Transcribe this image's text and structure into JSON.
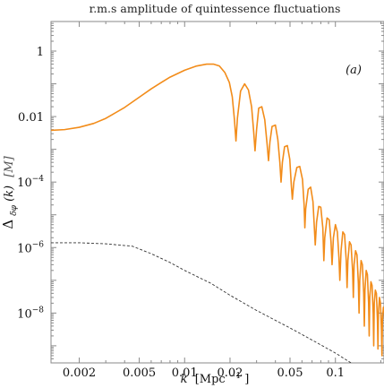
{
  "chart_data": {
    "type": "line",
    "title": "r.m.s amplitude of quintessence fluctuations",
    "panel_label": "(a)",
    "xlabel": {
      "var": "k",
      "unit_open": "[Mpc",
      "unit_sup": "−1",
      "unit_close": "]"
    },
    "ylabel": {
      "delta": "Δ",
      "sub": "δφ",
      "arg": "(k)",
      "unit": "[M]"
    },
    "x_scale": "log",
    "y_scale": "log",
    "xlim": [
      0.0013,
      0.21
    ],
    "ylim": [
      3e-10,
      8
    ],
    "x_ticks": [
      {
        "value": 0.002,
        "label": "0.002"
      },
      {
        "value": 0.005,
        "label": "0.005"
      },
      {
        "value": 0.01,
        "label": "0.01"
      },
      {
        "value": 0.02,
        "label": "0.02"
      },
      {
        "value": 0.05,
        "label": "0.05"
      },
      {
        "value": 0.1,
        "label": "0.1"
      }
    ],
    "y_ticks": [
      {
        "value": 1,
        "label": "1",
        "base": "",
        "exp": ""
      },
      {
        "value": 0.01,
        "label": "0.01",
        "base": "",
        "exp": ""
      },
      {
        "value": 0.0001,
        "label": "",
        "base": "10",
        "exp": "−4"
      },
      {
        "value": 1e-06,
        "label": "",
        "base": "10",
        "exp": "−6"
      },
      {
        "value": 1e-08,
        "label": "",
        "base": "10",
        "exp": "−8"
      }
    ],
    "grid": false,
    "colors": {
      "oscillating": "#f28c1a",
      "dashed": "#333333",
      "frame": "#8a8a8a"
    },
    "series": [
      {
        "style": "solid-orange",
        "points": [
          [
            0.0013,
            0.0038
          ],
          [
            0.0016,
            0.004
          ],
          [
            0.002,
            0.0047
          ],
          [
            0.0025,
            0.0062
          ],
          [
            0.003,
            0.0088
          ],
          [
            0.004,
            0.019
          ],
          [
            0.005,
            0.039
          ],
          [
            0.006,
            0.07
          ],
          [
            0.007,
            0.11
          ],
          [
            0.008,
            0.16
          ],
          [
            0.01,
            0.26
          ],
          [
            0.012,
            0.35
          ],
          [
            0.014,
            0.4
          ],
          [
            0.0155,
            0.4
          ],
          [
            0.017,
            0.35
          ],
          [
            0.0185,
            0.22
          ],
          [
            0.0198,
            0.11
          ],
          [
            0.0207,
            0.04
          ],
          [
            0.0214,
            0.008
          ],
          [
            0.0219,
            0.0018
          ],
          [
            0.0224,
            0.009
          ],
          [
            0.0235,
            0.06
          ],
          [
            0.025,
            0.1
          ],
          [
            0.0265,
            0.065
          ],
          [
            0.0278,
            0.02
          ],
          [
            0.0287,
            0.0035
          ],
          [
            0.0293,
            0.0009
          ],
          [
            0.03,
            0.004
          ],
          [
            0.031,
            0.018
          ],
          [
            0.0325,
            0.02
          ],
          [
            0.034,
            0.008
          ],
          [
            0.0352,
            0.0015
          ],
          [
            0.036,
            0.00045
          ],
          [
            0.0368,
            0.0017
          ],
          [
            0.038,
            0.005
          ],
          [
            0.04,
            0.0055
          ],
          [
            0.0415,
            0.002
          ],
          [
            0.0428,
            0.0004
          ],
          [
            0.0436,
            0.0001
          ],
          [
            0.0445,
            0.0004
          ],
          [
            0.046,
            0.0012
          ],
          [
            0.048,
            0.0013
          ],
          [
            0.0498,
            0.0005
          ],
          [
            0.051,
            8e-05
          ],
          [
            0.0518,
            3e-05
          ],
          [
            0.053,
            0.0001
          ],
          [
            0.0555,
            0.00028
          ],
          [
            0.058,
            0.0003
          ],
          [
            0.0605,
            0.00012
          ],
          [
            0.062,
            2e-05
          ],
          [
            0.0627,
            4e-06
          ],
          [
            0.0635,
            1.5e-05
          ],
          [
            0.066,
            6e-05
          ],
          [
            0.0685,
            7e-05
          ],
          [
            0.071,
            2.5e-05
          ],
          [
            0.0725,
            4e-06
          ],
          [
            0.0735,
            1.2e-06
          ],
          [
            0.075,
            6e-06
          ],
          [
            0.0775,
            1.8e-05
          ],
          [
            0.08,
            1.7e-05
          ],
          [
            0.0825,
            4e-06
          ],
          [
            0.0838,
            4e-07
          ],
          [
            0.085,
            2e-06
          ],
          [
            0.088,
            8e-06
          ],
          [
            0.091,
            7e-06
          ],
          [
            0.0935,
            1.5e-06
          ],
          [
            0.095,
            3e-07
          ],
          [
            0.097,
            2e-06
          ],
          [
            0.1,
            5e-06
          ],
          [
            0.103,
            3e-06
          ],
          [
            0.1055,
            5e-07
          ],
          [
            0.107,
            1e-07
          ],
          [
            0.109,
            8e-07
          ],
          [
            0.112,
            3e-06
          ],
          [
            0.115,
            2.5e-06
          ],
          [
            0.118,
            4e-07
          ],
          [
            0.1195,
            6e-08
          ],
          [
            0.121,
            4e-07
          ],
          [
            0.124,
            1.5e-06
          ],
          [
            0.127,
            1.2e-06
          ],
          [
            0.13,
            2e-07
          ],
          [
            0.1315,
            3e-08
          ],
          [
            0.133,
            3e-07
          ],
          [
            0.136,
            8e-07
          ],
          [
            0.139,
            6e-07
          ],
          [
            0.142,
            8e-08
          ],
          [
            0.1435,
            1e-08
          ],
          [
            0.145,
            1e-07
          ],
          [
            0.148,
            4e-07
          ],
          [
            0.151,
            3e-07
          ],
          [
            0.154,
            4e-08
          ],
          [
            0.1555,
            4e-09
          ],
          [
            0.157,
            5e-08
          ],
          [
            0.16,
            2e-07
          ],
          [
            0.163,
            1.5e-07
          ],
          [
            0.166,
            2e-08
          ],
          [
            0.1675,
            2e-09
          ],
          [
            0.169,
            3e-08
          ],
          [
            0.172,
            9e-08
          ],
          [
            0.175,
            7e-08
          ],
          [
            0.178,
            1e-08
          ],
          [
            0.1795,
            1e-09
          ],
          [
            0.181,
            2e-08
          ],
          [
            0.184,
            5e-08
          ],
          [
            0.187,
            4e-08
          ],
          [
            0.19,
            6e-09
          ],
          [
            0.1915,
            8e-10
          ],
          [
            0.193,
            1e-08
          ],
          [
            0.196,
            3e-08
          ],
          [
            0.199,
            2e-08
          ],
          [
            0.202,
            3e-09
          ],
          [
            0.2035,
            5e-10
          ],
          [
            0.205,
            6e-09
          ],
          [
            0.208,
            1.5e-08
          ],
          [
            0.21,
            1e-08
          ]
        ]
      },
      {
        "style": "dashed-black",
        "points": [
          [
            0.0013,
            1.4e-06
          ],
          [
            0.002,
            1.4e-06
          ],
          [
            0.003,
            1.3e-06
          ],
          [
            0.0045,
            1.1e-06
          ],
          [
            0.006,
            6.5e-07
          ],
          [
            0.008,
            3.5e-07
          ],
          [
            0.01,
            2e-07
          ],
          [
            0.015,
            8e-08
          ],
          [
            0.02,
            3.5e-08
          ],
          [
            0.03,
            1.2e-08
          ],
          [
            0.05,
            3.5e-09
          ],
          [
            0.07,
            1.5e-09
          ],
          [
            0.1,
            6e-10
          ],
          [
            0.13,
            2.8e-10
          ]
        ]
      }
    ]
  }
}
